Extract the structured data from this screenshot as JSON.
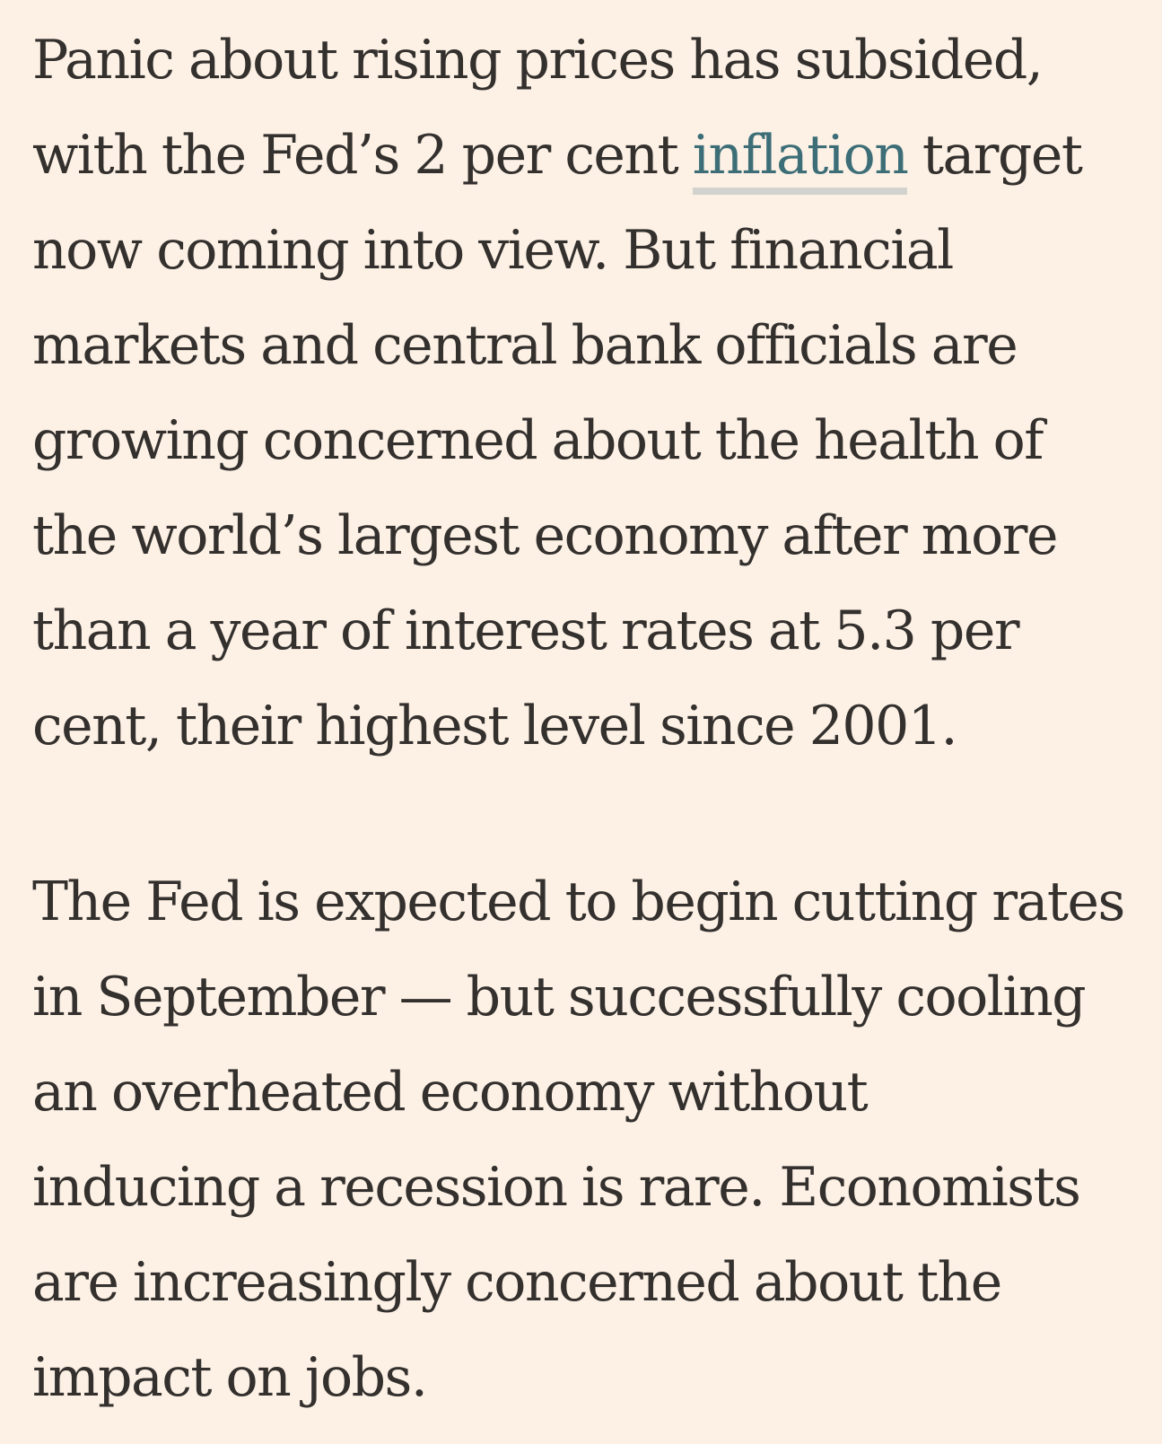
{
  "article": {
    "paragraph_1": {
      "line_1": "Panic about rising prices has subsided,",
      "line_2_before_link": "with the Fed’s 2 per cent ",
      "link_text": "inflation",
      "line_2_after_link": " target",
      "line_3": "now coming into view. But financial",
      "line_4": "markets and central bank officials are",
      "line_5": "growing concerned about the health of",
      "line_6": "the world’s largest economy after more",
      "line_7": "than a year of interest rates at 5.3 per",
      "line_8": "cent, their highest level since 2001."
    },
    "paragraph_2": {
      "line_1": "The Fed is expected to begin cutting rates",
      "line_2": "in September — but successfully cooling",
      "line_3": "an overheated economy without",
      "line_4": "inducing a recession is rare. Economists",
      "line_5": "are increasingly concerned about the",
      "line_6": "impact on jobs."
    }
  },
  "colors": {
    "background": "#FDF1E5",
    "text": "#33302E",
    "link": "#3D6E78",
    "link_underline": "#D2D3CF"
  }
}
